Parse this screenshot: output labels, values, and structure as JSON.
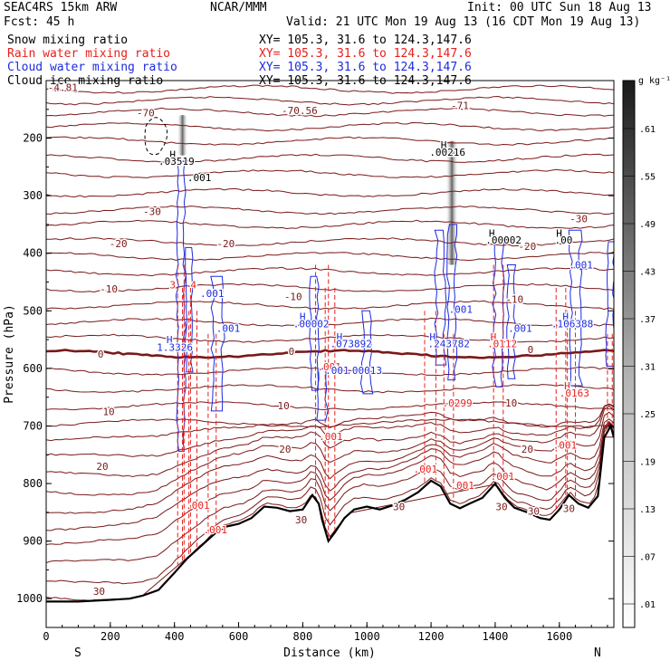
{
  "header": {
    "line1_left": "SEAC4RS 15km ARW",
    "line1_center": "NCAR/MMM",
    "line1_right": "Init: 00 UTC Sun 18 Aug 13",
    "line2_left": "Fcst:   45 h",
    "line2_right": "Valid: 21 UTC Mon 19 Aug 13 (16 CDT Mon 19 Aug 13)",
    "rows": [
      {
        "label": "Snow mixing ratio",
        "xy": "XY= 105.3, 31.6 to 124.3,147.6",
        "color": "#000000"
      },
      {
        "label": "Rain water mixing ratio",
        "xy": "XY= 105.3, 31.6 to 124.3,147.6",
        "color": "#e8201c"
      },
      {
        "label": "Cloud water mixing ratio",
        "xy": "XY= 105.3, 31.6 to 124.3,147.6",
        "color": "#1c2be0"
      },
      {
        "label": "Cloud ice mixing ratio",
        "xy": "XY= 105.3, 31.6 to 124.3,147.6",
        "color": "#000000"
      }
    ]
  },
  "chart_data": {
    "type": "cross-section",
    "xlabel": "Distance (km)",
    "ylabel": "Pressure (hPa)",
    "xlim": [
      0,
      1770
    ],
    "ylim": [
      1050,
      100
    ],
    "xticks": [
      "0",
      "200",
      "400",
      "600",
      "800",
      "1000",
      "1200",
      "1400",
      "1600"
    ],
    "xtick_values": [
      0,
      200,
      400,
      600,
      800,
      1000,
      1200,
      1400,
      1600
    ],
    "yticks": [
      "200",
      "300",
      "400",
      "500",
      "600",
      "700",
      "800",
      "900",
      "1000"
    ],
    "ytick_values": [
      200,
      300,
      400,
      500,
      600,
      700,
      800,
      900,
      1000
    ],
    "direction_left": "S",
    "direction_right": "N",
    "colorbar": {
      "unit": "g kg⁻¹",
      "labels": [
        ".01",
        ".07",
        ".13",
        ".19",
        ".25",
        ".31",
        ".37",
        ".43",
        ".49",
        ".55",
        ".61"
      ],
      "levels": [
        0.01,
        0.07,
        0.13,
        0.19,
        0.25,
        0.31,
        0.37,
        0.43,
        0.49,
        0.55,
        0.61
      ]
    },
    "temperature_contours": {
      "color": "#7a1818",
      "zero_line_pressure": 575,
      "labels": [
        {
          "text": "-70",
          "x": 310,
          "p": 156
        },
        {
          "text": "-70.56",
          "x": 790,
          "p": 152
        },
        {
          "text": "-71",
          "x": 1290,
          "p": 143
        },
        {
          "text": "-30",
          "x": 330,
          "p": 327
        },
        {
          "text": "-30",
          "x": 1660,
          "p": 340
        },
        {
          "text": "-20",
          "x": 225,
          "p": 383
        },
        {
          "text": "-20",
          "x": 560,
          "p": 383
        },
        {
          "text": "-20",
          "x": 1500,
          "p": 388
        },
        {
          "text": "-10",
          "x": 195,
          "p": 462
        },
        {
          "text": "-10",
          "x": 770,
          "p": 475
        },
        {
          "text": "-10",
          "x": 1460,
          "p": 480
        },
        {
          "text": "0",
          "x": 170,
          "p": 575
        },
        {
          "text": "0",
          "x": 765,
          "p": 570
        },
        {
          "text": "0",
          "x": 1510,
          "p": 567
        },
        {
          "text": "10",
          "x": 195,
          "p": 675
        },
        {
          "text": "10",
          "x": 740,
          "p": 665
        },
        {
          "text": "10",
          "x": 1450,
          "p": 660
        },
        {
          "text": "20",
          "x": 175,
          "p": 770
        },
        {
          "text": "20",
          "x": 745,
          "p": 740
        },
        {
          "text": "20",
          "x": 1500,
          "p": 740
        },
        {
          "text": "30",
          "x": 165,
          "p": 987
        },
        {
          "text": "30",
          "x": 795,
          "p": 863
        },
        {
          "text": "30",
          "x": 1100,
          "p": 840
        },
        {
          "text": "30",
          "x": 1420,
          "p": 840
        },
        {
          "text": "30",
          "x": 1520,
          "p": 848
        },
        {
          "text": "30",
          "x": 1630,
          "p": 843
        }
      ]
    },
    "extrema_labels": [
      {
        "text": "H",
        "x": 385,
        "p": 228,
        "color": "#000000"
      },
      {
        "text": ".03519",
        "x": 350,
        "p": 240,
        "color": "#000000"
      },
      {
        "text": ".001",
        "x": 440,
        "p": 268,
        "color": "#000000"
      },
      {
        "text": "H",
        "x": 1230,
        "p": 212,
        "color": "#000000"
      },
      {
        "text": ".00216",
        "x": 1195,
        "p": 224,
        "color": "#000000"
      },
      {
        "text": "H",
        "x": 1380,
        "p": 365,
        "color": "#000000"
      },
      {
        "text": ".00002",
        "x": 1370,
        "p": 377,
        "color": "#000000"
      },
      {
        "text": "H",
        "x": 1590,
        "p": 365,
        "color": "#000000"
      },
      {
        "text": ".00",
        "x": 1585,
        "p": 377,
        "color": "#000000"
      },
      {
        "text": "-4.81",
        "x": 5,
        "p": 112,
        "color": "#7a1818"
      },
      {
        "text": "3",
        "x": 385,
        "p": 455,
        "color": "#e8201c"
      },
      {
        "text": "4",
        "x": 450,
        "p": 455,
        "color": "#e8201c"
      },
      {
        "text": ".001",
        "x": 480,
        "p": 470,
        "color": "#1c2be0"
      },
      {
        "text": ".001",
        "x": 530,
        "p": 530,
        "color": "#1c2be0"
      },
      {
        "text": "H",
        "x": 375,
        "p": 550,
        "color": "#1c2be0"
      },
      {
        "text": "1.3326",
        "x": 345,
        "p": 563,
        "color": "#1c2be0"
      },
      {
        "text": "H",
        "x": 790,
        "p": 510,
        "color": "#1c2be0"
      },
      {
        "text": ".00002",
        "x": 770,
        "p": 522,
        "color": "#1c2be0"
      },
      {
        "text": "H",
        "x": 905,
        "p": 545,
        "color": "#1c2be0"
      },
      {
        "text": ".073892",
        "x": 885,
        "p": 557,
        "color": "#1c2be0"
      },
      {
        "text": ".001",
        "x": 845,
        "p": 597,
        "color": "#e8201c"
      },
      {
        "text": ".001",
        "x": 870,
        "p": 603,
        "color": "#1c2be0"
      },
      {
        "text": ".00013",
        "x": 935,
        "p": 603,
        "color": "#1c2be0"
      },
      {
        "text": "H",
        "x": 1195,
        "p": 545,
        "color": "#1c2be0"
      },
      {
        "text": ".243782",
        "x": 1190,
        "p": 557,
        "color": "#1c2be0"
      },
      {
        "text": ".001",
        "x": 1255,
        "p": 497,
        "color": "#1c2be0"
      },
      {
        "text": ".0299",
        "x": 1235,
        "p": 660,
        "color": "#e8201c"
      },
      {
        "text": "H",
        "x": 1385,
        "p": 545,
        "color": "#e8201c"
      },
      {
        "text": ".0112",
        "x": 1375,
        "p": 557,
        "color": "#e8201c"
      },
      {
        "text": ".001",
        "x": 1440,
        "p": 530,
        "color": "#1c2be0"
      },
      {
        "text": "H",
        "x": 1610,
        "p": 510,
        "color": "#1c2be0"
      },
      {
        "text": ".106388",
        "x": 1575,
        "p": 522,
        "color": "#1c2be0"
      },
      {
        "text": ".001",
        "x": 1630,
        "p": 420,
        "color": "#1c2be0"
      },
      {
        "text": "H",
        "x": 1615,
        "p": 630,
        "color": "#e8201c"
      },
      {
        "text": ".0163",
        "x": 1600,
        "p": 643,
        "color": "#e8201c"
      },
      {
        "text": ".001",
        "x": 1580,
        "p": 733,
        "color": "#e8201c"
      },
      {
        "text": ".001",
        "x": 850,
        "p": 718,
        "color": "#e8201c"
      },
      {
        "text": ".001",
        "x": 1145,
        "p": 775,
        "color": "#e8201c"
      },
      {
        "text": ".001",
        "x": 1260,
        "p": 803,
        "color": "#e8201c"
      },
      {
        "text": ".001",
        "x": 1385,
        "p": 787,
        "color": "#e8201c"
      },
      {
        "text": ".001",
        "x": 435,
        "p": 838,
        "color": "#e8201c"
      },
      {
        "text": ".001",
        "x": 490,
        "p": 880,
        "color": "#e8201c"
      }
    ],
    "snow_cores": [
      {
        "x": 425,
        "p_top": 160,
        "p_bottom": 230,
        "max": 0.035
      },
      {
        "x": 1265,
        "p_top": 205,
        "p_bottom": 420,
        "max": 0.61
      }
    ],
    "terrain_pressure": [
      [
        0,
        1005
      ],
      [
        100,
        1005
      ],
      [
        200,
        1002
      ],
      [
        260,
        1000
      ],
      [
        300,
        995
      ],
      [
        350,
        985
      ],
      [
        400,
        955
      ],
      [
        440,
        930
      ],
      [
        470,
        915
      ],
      [
        500,
        900
      ],
      [
        530,
        885
      ],
      [
        560,
        875
      ],
      [
        600,
        870
      ],
      [
        640,
        860
      ],
      [
        680,
        840
      ],
      [
        720,
        842
      ],
      [
        760,
        848
      ],
      [
        800,
        845
      ],
      [
        830,
        820
      ],
      [
        850,
        835
      ],
      [
        860,
        862
      ],
      [
        880,
        900
      ],
      [
        900,
        885
      ],
      [
        930,
        860
      ],
      [
        960,
        845
      ],
      [
        1000,
        840
      ],
      [
        1040,
        845
      ],
      [
        1080,
        838
      ],
      [
        1120,
        828
      ],
      [
        1160,
        815
      ],
      [
        1200,
        795
      ],
      [
        1230,
        805
      ],
      [
        1260,
        835
      ],
      [
        1290,
        843
      ],
      [
        1320,
        835
      ],
      [
        1360,
        825
      ],
      [
        1400,
        800
      ],
      [
        1430,
        825
      ],
      [
        1460,
        842
      ],
      [
        1500,
        850
      ],
      [
        1540,
        860
      ],
      [
        1570,
        863
      ],
      [
        1600,
        845
      ],
      [
        1630,
        820
      ],
      [
        1660,
        835
      ],
      [
        1690,
        842
      ],
      [
        1720,
        822
      ],
      [
        1740,
        720
      ],
      [
        1760,
        700
      ],
      [
        1770,
        720
      ]
    ]
  }
}
